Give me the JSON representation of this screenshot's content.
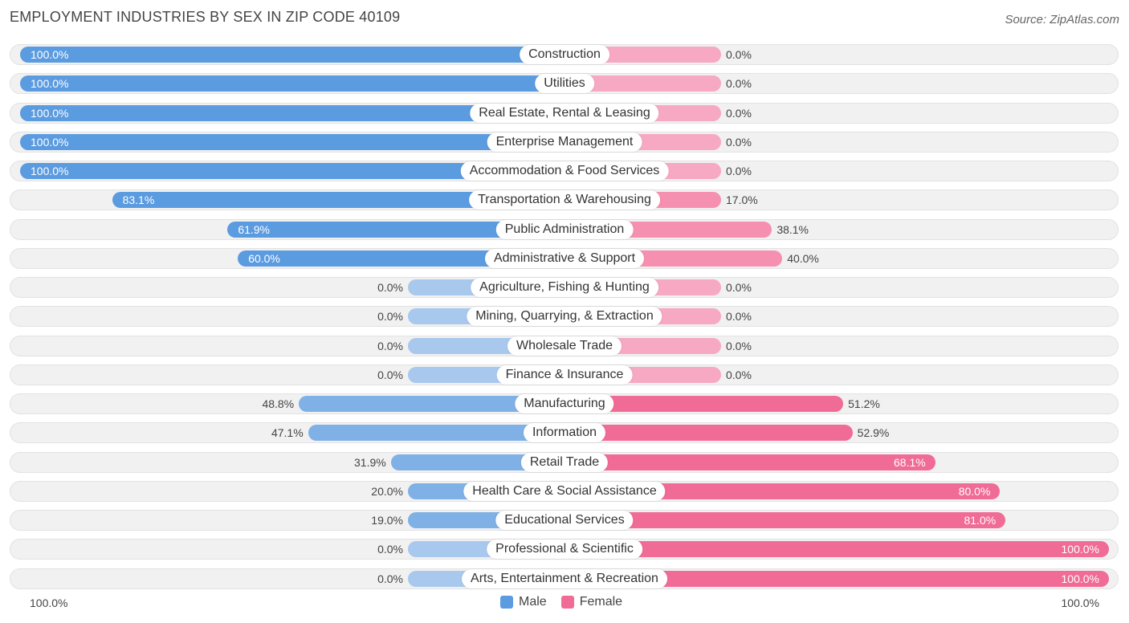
{
  "title": "EMPLOYMENT INDUSTRIES BY SEX IN ZIP CODE 40109",
  "source": "Source: ZipAtlas.com",
  "colors": {
    "male": "#5b9be0",
    "male_light": "#a8c8ee",
    "female": "#f06b95",
    "female_light": "#f7a8c2"
  },
  "chart_data": {
    "type": "bar",
    "orientation": "horizontal-diverging",
    "categories": [
      "Construction",
      "Utilities",
      "Real Estate, Rental & Leasing",
      "Enterprise Management",
      "Accommodation & Food Services",
      "Transportation & Warehousing",
      "Public Administration",
      "Administrative & Support",
      "Agriculture, Fishing & Hunting",
      "Mining, Quarrying, & Extraction",
      "Wholesale Trade",
      "Finance & Insurance",
      "Manufacturing",
      "Information",
      "Retail Trade",
      "Health Care & Social Assistance",
      "Educational Services",
      "Professional & Scientific",
      "Arts, Entertainment & Recreation"
    ],
    "series": [
      {
        "name": "Male",
        "values": [
          100.0,
          100.0,
          100.0,
          100.0,
          100.0,
          83.1,
          61.9,
          60.0,
          0.0,
          0.0,
          0.0,
          0.0,
          48.8,
          47.1,
          31.9,
          20.0,
          19.0,
          0.0,
          0.0
        ]
      },
      {
        "name": "Female",
        "values": [
          0.0,
          0.0,
          0.0,
          0.0,
          0.0,
          17.0,
          38.1,
          40.0,
          0.0,
          0.0,
          0.0,
          0.0,
          51.2,
          52.9,
          68.1,
          80.0,
          81.0,
          100.0,
          100.0
        ]
      }
    ],
    "value_labels": {
      "male": [
        "100.0%",
        "100.0%",
        "100.0%",
        "100.0%",
        "100.0%",
        "83.1%",
        "61.9%",
        "60.0%",
        "0.0%",
        "0.0%",
        "0.0%",
        "0.0%",
        "48.8%",
        "47.1%",
        "31.9%",
        "20.0%",
        "19.0%",
        "0.0%",
        "0.0%"
      ],
      "female": [
        "0.0%",
        "0.0%",
        "0.0%",
        "0.0%",
        "0.0%",
        "17.0%",
        "38.1%",
        "40.0%",
        "0.0%",
        "0.0%",
        "0.0%",
        "0.0%",
        "51.2%",
        "52.9%",
        "68.1%",
        "80.0%",
        "81.0%",
        "100.0%",
        "100.0%"
      ]
    },
    "axis": {
      "left_label": "100.0%",
      "right_label": "100.0%",
      "range": [
        0,
        100
      ]
    },
    "legend": {
      "position": "bottom-center",
      "entries": [
        "Male",
        "Female"
      ]
    }
  }
}
